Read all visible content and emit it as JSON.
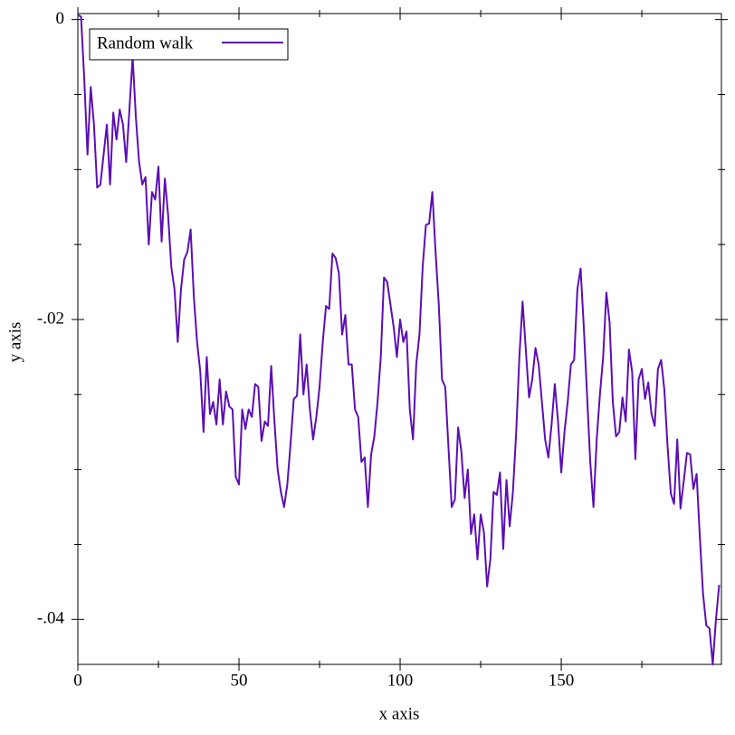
{
  "chart_data": {
    "type": "line",
    "xlabel": "x axis",
    "ylabel": "y axis",
    "xlim": [
      0,
      199.7
    ],
    "ylim": [
      -0.043,
      0.0004
    ],
    "xticks": [
      0,
      50,
      100,
      150
    ],
    "xminorticks": [
      25,
      75,
      125,
      175
    ],
    "yticks": [
      0,
      {
        "value": -0.02,
        "label": "-.02"
      },
      {
        "value": -0.04,
        "label": "-.04"
      }
    ],
    "yminorticks": [
      -0.005,
      -0.01,
      -0.015,
      -0.025,
      -0.03,
      -0.035
    ],
    "legend": "top-left",
    "x": [
      0,
      1,
      2,
      3,
      4,
      5,
      6,
      7,
      8,
      9,
      10,
      11,
      12,
      13,
      14,
      15,
      16,
      17,
      18,
      19,
      20,
      21,
      22,
      23,
      24,
      25,
      26,
      27,
      28,
      29,
      30,
      31,
      32,
      33,
      34,
      35,
      36,
      37,
      38,
      39,
      40,
      41,
      42,
      43,
      44,
      45,
      46,
      47,
      48,
      49,
      50,
      51,
      52,
      53,
      54,
      55,
      56,
      57,
      58,
      59,
      60,
      61,
      62,
      63,
      64,
      65,
      66,
      67,
      68,
      69,
      70,
      71,
      72,
      73,
      74,
      75,
      76,
      77,
      78,
      79,
      80,
      81,
      82,
      83,
      84,
      85,
      86,
      87,
      88,
      89,
      90,
      91,
      92,
      93,
      94,
      95,
      96,
      97,
      98,
      99,
      100,
      101,
      102,
      103,
      104,
      105,
      106,
      107,
      108,
      109,
      110,
      111,
      112,
      113,
      114,
      115,
      116,
      117,
      118,
      119,
      120,
      121,
      122,
      123,
      124,
      125,
      126,
      127,
      128,
      129,
      130,
      131,
      132,
      133,
      134,
      135,
      136,
      137,
      138,
      139,
      140,
      141,
      142,
      143,
      144,
      145,
      146,
      147,
      148,
      149,
      150,
      151,
      152,
      153,
      154,
      155,
      156,
      157,
      158,
      159,
      160,
      161,
      162,
      163,
      164,
      165,
      166,
      167,
      168,
      169,
      170,
      171,
      172,
      173,
      174,
      175,
      176,
      177,
      178,
      179,
      180,
      181,
      182,
      183,
      184,
      185,
      186,
      187,
      188,
      189,
      190,
      191,
      192,
      193,
      194,
      195,
      196,
      197,
      198,
      199
    ],
    "series": [
      {
        "name": "Random walk",
        "color": "#5b0fb4",
        "values": [
          0.0003,
          0.0002,
          -0.004,
          -0.009,
          -0.0045,
          -0.007,
          -0.0112,
          -0.011,
          -0.009,
          -0.007,
          -0.011,
          -0.0062,
          -0.008,
          -0.006,
          -0.007,
          -0.0095,
          -0.006,
          -0.0025,
          -0.0065,
          -0.0095,
          -0.011,
          -0.0105,
          -0.015,
          -0.0115,
          -0.012,
          -0.0098,
          -0.0148,
          -0.0106,
          -0.013,
          -0.0165,
          -0.018,
          -0.0215,
          -0.018,
          -0.016,
          -0.0155,
          -0.014,
          -0.0185,
          -0.0215,
          -0.0235,
          -0.0275,
          -0.0225,
          -0.0263,
          -0.0255,
          -0.027,
          -0.024,
          -0.027,
          -0.0248,
          -0.0258,
          -0.026,
          -0.0305,
          -0.031,
          -0.026,
          -0.0273,
          -0.026,
          -0.0265,
          -0.0243,
          -0.0245,
          -0.0281,
          -0.0268,
          -0.0271,
          -0.0231,
          -0.0268,
          -0.03,
          -0.0315,
          -0.0325,
          -0.031,
          -0.0283,
          -0.0253,
          -0.0251,
          -0.021,
          -0.025,
          -0.023,
          -0.026,
          -0.028,
          -0.0265,
          -0.0245,
          -0.0215,
          -0.0191,
          -0.0193,
          -0.0156,
          -0.0159,
          -0.0169,
          -0.021,
          -0.0197,
          -0.023,
          -0.023,
          -0.026,
          -0.0265,
          -0.0295,
          -0.0292,
          -0.0325,
          -0.029,
          -0.0278,
          -0.0255,
          -0.0225,
          -0.0172,
          -0.0175,
          -0.019,
          -0.0205,
          -0.0225,
          -0.02,
          -0.0215,
          -0.0208,
          -0.026,
          -0.028,
          -0.023,
          -0.021,
          -0.0165,
          -0.0137,
          -0.0136,
          -0.0115,
          -0.0155,
          -0.019,
          -0.024,
          -0.0245,
          -0.0285,
          -0.0325,
          -0.032,
          -0.0272,
          -0.0288,
          -0.0319,
          -0.03,
          -0.0343,
          -0.033,
          -0.036,
          -0.033,
          -0.0342,
          -0.0378,
          -0.036,
          -0.0315,
          -0.0317,
          -0.0302,
          -0.0353,
          -0.0307,
          -0.0338,
          -0.0315,
          -0.0276,
          -0.0225,
          -0.0188,
          -0.022,
          -0.0252,
          -0.024,
          -0.0219,
          -0.023,
          -0.0255,
          -0.028,
          -0.0292,
          -0.027,
          -0.0243,
          -0.0268,
          -0.0302,
          -0.0275,
          -0.0255,
          -0.023,
          -0.0227,
          -0.018,
          -0.0166,
          -0.0205,
          -0.025,
          -0.0295,
          -0.0325,
          -0.028,
          -0.025,
          -0.0225,
          -0.0182,
          -0.0202,
          -0.0255,
          -0.0278,
          -0.0275,
          -0.0252,
          -0.0268,
          -0.022,
          -0.0235,
          -0.0293,
          -0.024,
          -0.0233,
          -0.0253,
          -0.0242,
          -0.0263,
          -0.0271,
          -0.0233,
          -0.0227,
          -0.0247,
          -0.0285,
          -0.0316,
          -0.0323,
          -0.028,
          -0.0326,
          -0.0308,
          -0.0289,
          -0.029,
          -0.0313,
          -0.0303,
          -0.0345,
          -0.0383,
          -0.0404,
          -0.0406,
          -0.043,
          -0.04,
          -0.0377
        ]
      }
    ]
  }
}
